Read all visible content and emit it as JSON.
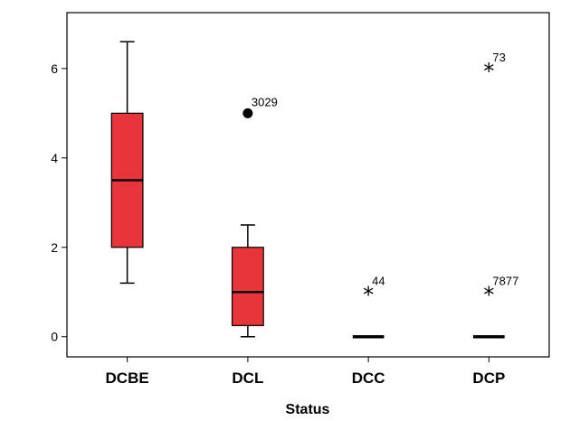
{
  "chart_data": {
    "type": "boxplot",
    "xlabel": "Status",
    "ylabel": "",
    "ylim": [
      -0.45,
      7.25
    ],
    "yticks": [
      0,
      2,
      4,
      6
    ],
    "categories": [
      "DCBE",
      "DCL",
      "DCC",
      "DCP"
    ],
    "box_color": "#e8353a",
    "boxes": [
      {
        "category": "DCBE",
        "whisker_low": 1.2,
        "q1": 2.0,
        "median": 3.5,
        "q3": 5.0,
        "whisker_high": 6.6,
        "outliers": []
      },
      {
        "category": "DCL",
        "whisker_low": 0.0,
        "q1": 0.25,
        "median": 1.0,
        "q3": 2.0,
        "whisker_high": 2.5,
        "outliers": [
          {
            "value": 5.0,
            "marker": "circle",
            "label": "3029"
          }
        ]
      },
      {
        "category": "DCC",
        "whisker_low": 0.0,
        "q1": 0.0,
        "median": 0.0,
        "q3": 0.0,
        "whisker_high": 0.0,
        "outliers": [
          {
            "value": 1.0,
            "marker": "star",
            "label": "44"
          }
        ]
      },
      {
        "category": "DCP",
        "whisker_low": 0.0,
        "q1": 0.0,
        "median": 0.0,
        "q3": 0.0,
        "whisker_high": 0.0,
        "outliers": [
          {
            "value": 6.0,
            "marker": "star",
            "label": "73"
          },
          {
            "value": 1.0,
            "marker": "star",
            "label": "7877"
          }
        ]
      }
    ]
  }
}
